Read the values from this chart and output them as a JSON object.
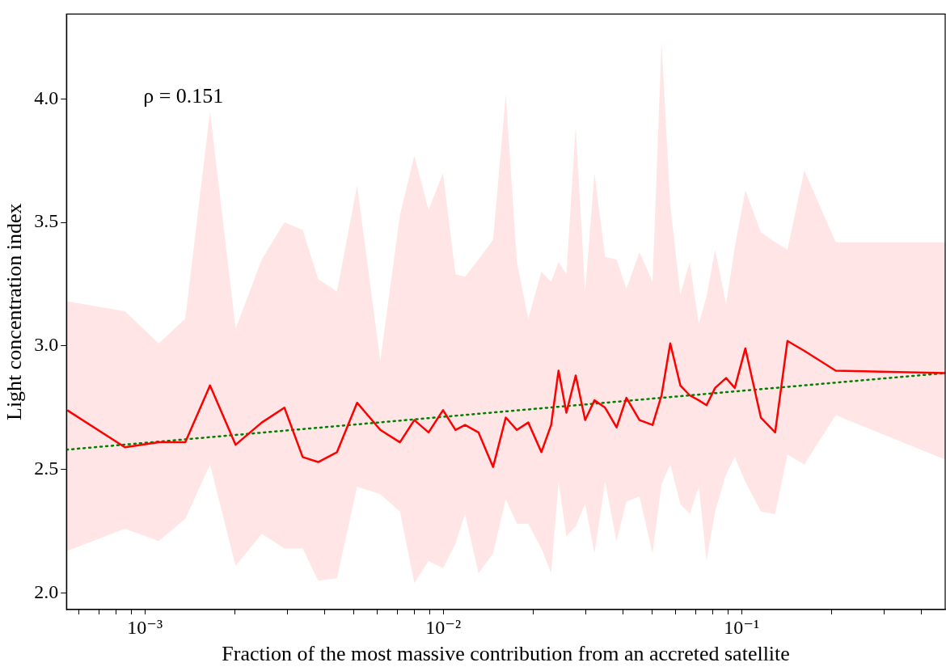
{
  "chart_data": {
    "type": "line",
    "xlabel": "Fraction of the most massive contribution from an accreted satellite",
    "ylabel": "Light concentration index",
    "annotations": [
      "ρ = 0.151"
    ],
    "log": "x",
    "grid": false,
    "legend": false,
    "marker": "none",
    "xlim": [
      0.000546,
      0.481
    ],
    "ylim": [
      1.933,
      4.343
    ],
    "xticks": [
      {
        "value": 0.0006,
        "label": null
      },
      {
        "value": 0.0007,
        "label": null
      },
      {
        "value": 0.0008,
        "label": null
      },
      {
        "value": 0.0009,
        "label": null
      },
      {
        "value": 0.001,
        "label": "10⁻³"
      },
      {
        "value": 0.002,
        "label": null
      },
      {
        "value": 0.003,
        "label": null
      },
      {
        "value": 0.004,
        "label": null
      },
      {
        "value": 0.005,
        "label": null
      },
      {
        "value": 0.006,
        "label": null
      },
      {
        "value": 0.007,
        "label": null
      },
      {
        "value": 0.008,
        "label": null
      },
      {
        "value": 0.009,
        "label": null
      },
      {
        "value": 0.01,
        "label": "10⁻²"
      },
      {
        "value": 0.02,
        "label": null
      },
      {
        "value": 0.03,
        "label": null
      },
      {
        "value": 0.04,
        "label": null
      },
      {
        "value": 0.05,
        "label": null
      },
      {
        "value": 0.06,
        "label": null
      },
      {
        "value": 0.07,
        "label": null
      },
      {
        "value": 0.08,
        "label": null
      },
      {
        "value": 0.09,
        "label": null
      },
      {
        "value": 0.1,
        "label": "10⁻¹"
      },
      {
        "value": 0.2,
        "label": null
      },
      {
        "value": 0.3,
        "label": null
      },
      {
        "value": 0.4,
        "label": null
      }
    ],
    "yticks": [
      {
        "value": 2,
        "label": "2.0"
      },
      {
        "value": 2.5,
        "label": "2.5"
      },
      {
        "value": 3,
        "label": "3.0"
      },
      {
        "value": 3.5,
        "label": "3.5"
      },
      {
        "value": 4,
        "label": "4.0"
      }
    ],
    "series": [
      {
        "type": "line",
        "color": "#ff0000",
        "line_style": "solid",
        "x": [
          0.000549,
          0.000857,
          0.001113,
          0.001366,
          0.001653,
          0.002014,
          0.002465,
          0.002935,
          0.00338,
          0.003809,
          0.004404,
          0.005143,
          0.006152,
          0.007157,
          0.008,
          0.008928,
          0.00998,
          0.01099,
          0.01183,
          0.01312,
          0.01469,
          0.0162,
          0.01765,
          0.01927,
          0.02132,
          0.02299,
          0.02434,
          0.02586,
          0.02779,
          0.02989,
          0.03212,
          0.03487,
          0.03809,
          0.04109,
          0.04545,
          0.05028,
          0.05389,
          0.05765,
          0.06231,
          0.06699,
          0.07182,
          0.07626,
          0.08147,
          0.08869,
          0.09484,
          0.1029,
          0.116,
          0.1295,
          0.1424,
          0.1622,
          0.2066,
          0.481
        ],
        "values": [
          2.74,
          2.59,
          2.61,
          2.61,
          2.84,
          2.6,
          2.69,
          2.75,
          2.55,
          2.53,
          2.57,
          2.77,
          2.66,
          2.61,
          2.7,
          2.65,
          2.74,
          2.66,
          2.68,
          2.65,
          2.51,
          2.71,
          2.66,
          2.69,
          2.57,
          2.68,
          2.9,
          2.73,
          2.88,
          2.7,
          2.78,
          2.75,
          2.67,
          2.79,
          2.7,
          2.68,
          2.8,
          3.01,
          2.84,
          2.8,
          2.78,
          2.76,
          2.83,
          2.87,
          2.83,
          2.99,
          2.71,
          2.65,
          3.02,
          2.98,
          2.9,
          2.89
        ],
        "upper": [
          3.18,
          3.14,
          3.01,
          3.11,
          3.95,
          3.07,
          3.35,
          3.5,
          3.47,
          3.27,
          3.22,
          3.65,
          2.94,
          3.53,
          3.77,
          3.55,
          3.7,
          3.29,
          3.28,
          3.35,
          3.43,
          4.02,
          3.34,
          3.11,
          3.3,
          3.26,
          3.34,
          3.29,
          3.89,
          3.22,
          3.7,
          3.36,
          3.35,
          3.23,
          3.38,
          3.26,
          4.23,
          3.57,
          3.21,
          3.34,
          3.09,
          3.2,
          3.39,
          3.17,
          3.4,
          3.63,
          3.46,
          3.42,
          3.39,
          3.71,
          3.42,
          3.42
        ],
        "lower": [
          2.17,
          2.26,
          2.21,
          2.3,
          2.52,
          2.11,
          2.24,
          2.18,
          2.18,
          2.05,
          2.06,
          2.43,
          2.4,
          2.33,
          2.04,
          2.13,
          2.1,
          2.2,
          2.32,
          2.08,
          2.16,
          2.38,
          2.28,
          2.28,
          2.18,
          2.08,
          2.45,
          2.23,
          2.27,
          2.36,
          2.16,
          2.45,
          2.21,
          2.37,
          2.39,
          2.16,
          2.44,
          2.52,
          2.36,
          2.32,
          2.43,
          2.13,
          2.33,
          2.48,
          2.55,
          2.45,
          2.33,
          2.32,
          2.56,
          2.52,
          2.72,
          2.54
        ]
      },
      {
        "type": "line",
        "color": "#008000",
        "line_style": "dotted",
        "x": [
          0.000546,
          0.481
        ],
        "values": [
          2.58,
          2.89
        ]
      }
    ]
  }
}
